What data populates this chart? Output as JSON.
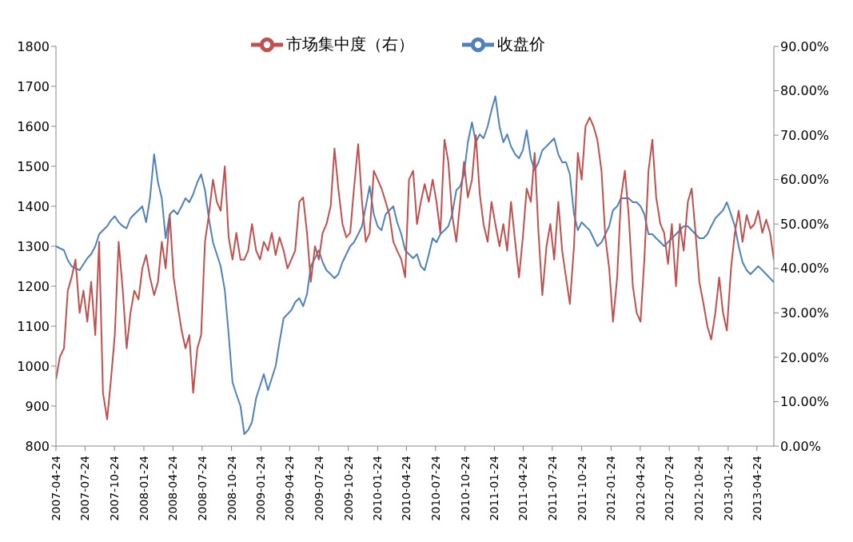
{
  "chart_data": {
    "type": "line",
    "legend": "top",
    "grid": false,
    "marker": "none",
    "line_style": "solid",
    "xlim": [
      "2007-04-24",
      "2013-06-16"
    ],
    "xticks": [
      "2007-04-24",
      "2007-07-24",
      "2007-10-24",
      "2008-01-24",
      "2008-04-24",
      "2008-07-24",
      "2008-10-24",
      "2009-01-24",
      "2009-04-24",
      "2009-07-24",
      "2009-10-24",
      "2010-01-24",
      "2010-04-24",
      "2010-07-24",
      "2010-10-24",
      "2011-01-24",
      "2011-04-24",
      "2011-07-24",
      "2011-10-24",
      "2012-01-24",
      "2012-04-24",
      "2012-07-24",
      "2012-10-24",
      "2013-01-24",
      "2013-04-24"
    ],
    "ylim": [
      800,
      1800
    ],
    "yticks": [
      800,
      900,
      1000,
      1100,
      1200,
      1300,
      1400,
      1500,
      1600,
      1700,
      1800
    ],
    "y2lim": [
      0,
      90
    ],
    "y2ticks": [
      {
        "value": 0,
        "label": "0.00%"
      },
      {
        "value": 10,
        "label": "10.00%"
      },
      {
        "value": 20,
        "label": "20.00%"
      },
      {
        "value": 30,
        "label": "30.00%"
      },
      {
        "value": 40,
        "label": "40.00%"
      },
      {
        "value": 50,
        "label": "50.00%"
      },
      {
        "value": 60,
        "label": "60.00%"
      },
      {
        "value": 70,
        "label": "70.00%"
      },
      {
        "value": 80,
        "label": "80.00%"
      },
      {
        "value": 90,
        "label": "90.00%"
      }
    ],
    "x": [
      "2007-04-24",
      "2007-05-06",
      "2007-05-19",
      "2007-05-31",
      "2007-06-12",
      "2007-06-24",
      "2007-07-07",
      "2007-07-19",
      "2007-07-31",
      "2007-08-12",
      "2007-08-25",
      "2007-09-06",
      "2007-09-18",
      "2007-10-01",
      "2007-10-13",
      "2007-10-25",
      "2007-11-06",
      "2007-11-19",
      "2007-12-01",
      "2007-12-13",
      "2007-12-25",
      "2008-01-07",
      "2008-01-19",
      "2008-01-31",
      "2008-02-12",
      "2008-02-25",
      "2008-03-08",
      "2008-03-20",
      "2008-04-01",
      "2008-04-14",
      "2008-04-26",
      "2008-05-08",
      "2008-05-21",
      "2008-06-02",
      "2008-06-14",
      "2008-06-26",
      "2008-07-09",
      "2008-07-21",
      "2008-08-02",
      "2008-08-14",
      "2008-08-27",
      "2008-09-08",
      "2008-09-20",
      "2008-10-03",
      "2008-10-15",
      "2008-10-27",
      "2008-11-08",
      "2008-11-21",
      "2008-12-03",
      "2008-12-15",
      "2008-12-27",
      "2009-01-09",
      "2009-01-21",
      "2009-02-02",
      "2009-02-15",
      "2009-02-27",
      "2009-03-11",
      "2009-03-23",
      "2009-04-05",
      "2009-04-17",
      "2009-04-29",
      "2009-05-11",
      "2009-05-24",
      "2009-06-05",
      "2009-06-17",
      "2009-06-29",
      "2009-07-12",
      "2009-07-24",
      "2009-08-05",
      "2009-08-17",
      "2009-08-30",
      "2009-09-11",
      "2009-09-23",
      "2009-10-06",
      "2009-10-18",
      "2009-10-30",
      "2009-11-11",
      "2009-11-24",
      "2009-12-06",
      "2009-12-18",
      "2009-12-30",
      "2010-01-12",
      "2010-01-24",
      "2010-02-05",
      "2010-02-18",
      "2010-03-02",
      "2010-03-14",
      "2010-03-26",
      "2010-04-08",
      "2010-04-20",
      "2010-05-02",
      "2010-05-15",
      "2010-05-27",
      "2010-06-08",
      "2010-06-20",
      "2010-07-03",
      "2010-07-15",
      "2010-07-27",
      "2010-08-08",
      "2010-08-21",
      "2010-09-02",
      "2010-09-14",
      "2010-09-27",
      "2010-10-09",
      "2010-10-21",
      "2010-11-02",
      "2010-11-15",
      "2010-11-27",
      "2010-12-09",
      "2010-12-21",
      "2011-01-03",
      "2011-01-15",
      "2011-01-27",
      "2011-02-09",
      "2011-02-21",
      "2011-03-05",
      "2011-03-17",
      "2011-03-30",
      "2011-04-11",
      "2011-04-23",
      "2011-05-05",
      "2011-05-18",
      "2011-05-30",
      "2011-06-11",
      "2011-06-23",
      "2011-07-06",
      "2011-07-18",
      "2011-07-30",
      "2011-08-12",
      "2011-08-24",
      "2011-09-05",
      "2011-09-17",
      "2011-09-30",
      "2011-10-12",
      "2011-10-24",
      "2011-11-05",
      "2011-11-18",
      "2011-11-30",
      "2011-12-12",
      "2011-12-25",
      "2012-01-06",
      "2012-01-18",
      "2012-01-30",
      "2012-02-12",
      "2012-02-24",
      "2012-03-07",
      "2012-03-19",
      "2012-04-01",
      "2012-04-13",
      "2012-04-25",
      "2012-05-07",
      "2012-05-20",
      "2012-06-01",
      "2012-06-13",
      "2012-06-26",
      "2012-07-08",
      "2012-07-20",
      "2012-08-01",
      "2012-08-14",
      "2012-08-26",
      "2012-09-07",
      "2012-09-20",
      "2012-10-02",
      "2012-10-14",
      "2012-10-26",
      "2012-11-08",
      "2012-11-20",
      "2012-12-02",
      "2012-12-15",
      "2012-12-27",
      "2013-01-08",
      "2013-01-20",
      "2013-02-02",
      "2013-02-14",
      "2013-02-26",
      "2013-03-10",
      "2013-03-23",
      "2013-04-04",
      "2013-04-16",
      "2013-04-28",
      "2013-05-11",
      "2013-05-23",
      "2013-06-04",
      "2013-06-16"
    ],
    "series": [
      {
        "name": "收盘价",
        "color": "#4f81bd",
        "values": [
          1300,
          1295,
          1290,
          1265,
          1250,
          1245,
          1240,
          1255,
          1270,
          1280,
          1300,
          1330,
          1340,
          1350,
          1365,
          1375,
          1360,
          1350,
          1345,
          1370,
          1380,
          1390,
          1400,
          1360,
          1420,
          1530,
          1460,
          1420,
          1320,
          1380,
          1390,
          1380,
          1400,
          1420,
          1410,
          1430,
          1460,
          1480,
          1440,
          1370,
          1310,
          1280,
          1250,
          1190,
          1080,
          960,
          930,
          900,
          830,
          840,
          860,
          920,
          950,
          980,
          940,
          970,
          1000,
          1060,
          1120,
          1130,
          1140,
          1160,
          1170,
          1150,
          1180,
          1250,
          1270,
          1290,
          1260,
          1240,
          1230,
          1220,
          1230,
          1260,
          1280,
          1300,
          1310,
          1330,
          1350,
          1400,
          1450,
          1380,
          1350,
          1340,
          1380,
          1390,
          1400,
          1360,
          1330,
          1290,
          1280,
          1270,
          1280,
          1250,
          1240,
          1280,
          1320,
          1310,
          1330,
          1340,
          1350,
          1380,
          1440,
          1450,
          1480,
          1560,
          1610,
          1560,
          1580,
          1570,
          1600,
          1640,
          1675,
          1600,
          1560,
          1580,
          1550,
          1530,
          1520,
          1540,
          1590,
          1520,
          1490,
          1510,
          1540,
          1550,
          1560,
          1570,
          1530,
          1510,
          1510,
          1480,
          1380,
          1340,
          1360,
          1350,
          1340,
          1320,
          1300,
          1310,
          1330,
          1350,
          1390,
          1400,
          1420,
          1420,
          1420,
          1410,
          1410,
          1400,
          1380,
          1330,
          1330,
          1320,
          1310,
          1300,
          1310,
          1320,
          1330,
          1340,
          1350,
          1350,
          1340,
          1330,
          1320,
          1320,
          1330,
          1350,
          1370,
          1380,
          1390,
          1410,
          1380,
          1350,
          1300,
          1260,
          1240,
          1230,
          1240,
          1250,
          1240,
          1230,
          1220,
          1210
        ]
      },
      {
        "name": "市场集中度（右）",
        "color": "#c0504d",
        "axis": "y2",
        "values": [
          15,
          20,
          22,
          35,
          38,
          42,
          30,
          35,
          28,
          37,
          25,
          46,
          12,
          6,
          15,
          25,
          46,
          35,
          22,
          30,
          35,
          33,
          40,
          43,
          38,
          34,
          37,
          46,
          40,
          52,
          38,
          32,
          26,
          22,
          25,
          12,
          22,
          25,
          46,
          52,
          60,
          55,
          53,
          63,
          47,
          42,
          48,
          42,
          42,
          44,
          50,
          44,
          42,
          46,
          44,
          48,
          43,
          47,
          44,
          40,
          42,
          44,
          55,
          56,
          48,
          37,
          45,
          42,
          48,
          50,
          54,
          67,
          58,
          50,
          47,
          48,
          58,
          68,
          55,
          46,
          48,
          62,
          60,
          58,
          55,
          52,
          46,
          44,
          42,
          38,
          60,
          62,
          50,
          55,
          59,
          55,
          60,
          55,
          48,
          69,
          64,
          52,
          46,
          55,
          64,
          56,
          60,
          70,
          57,
          50,
          46,
          55,
          50,
          45,
          50,
          44,
          55,
          46,
          38,
          47,
          58,
          55,
          66,
          48,
          34,
          45,
          50,
          42,
          55,
          44,
          38,
          32,
          45,
          66,
          60,
          72,
          74,
          72,
          69,
          62,
          47,
          40,
          28,
          38,
          56,
          62,
          52,
          36,
          30,
          28,
          42,
          62,
          69,
          56,
          50,
          48,
          41,
          50,
          36,
          50,
          44,
          55,
          58,
          48,
          37,
          32,
          27,
          24,
          30,
          38,
          30,
          26,
          40,
          48,
          53,
          46,
          52,
          49,
          50,
          53,
          48,
          51,
          48,
          42
        ]
      }
    ]
  }
}
